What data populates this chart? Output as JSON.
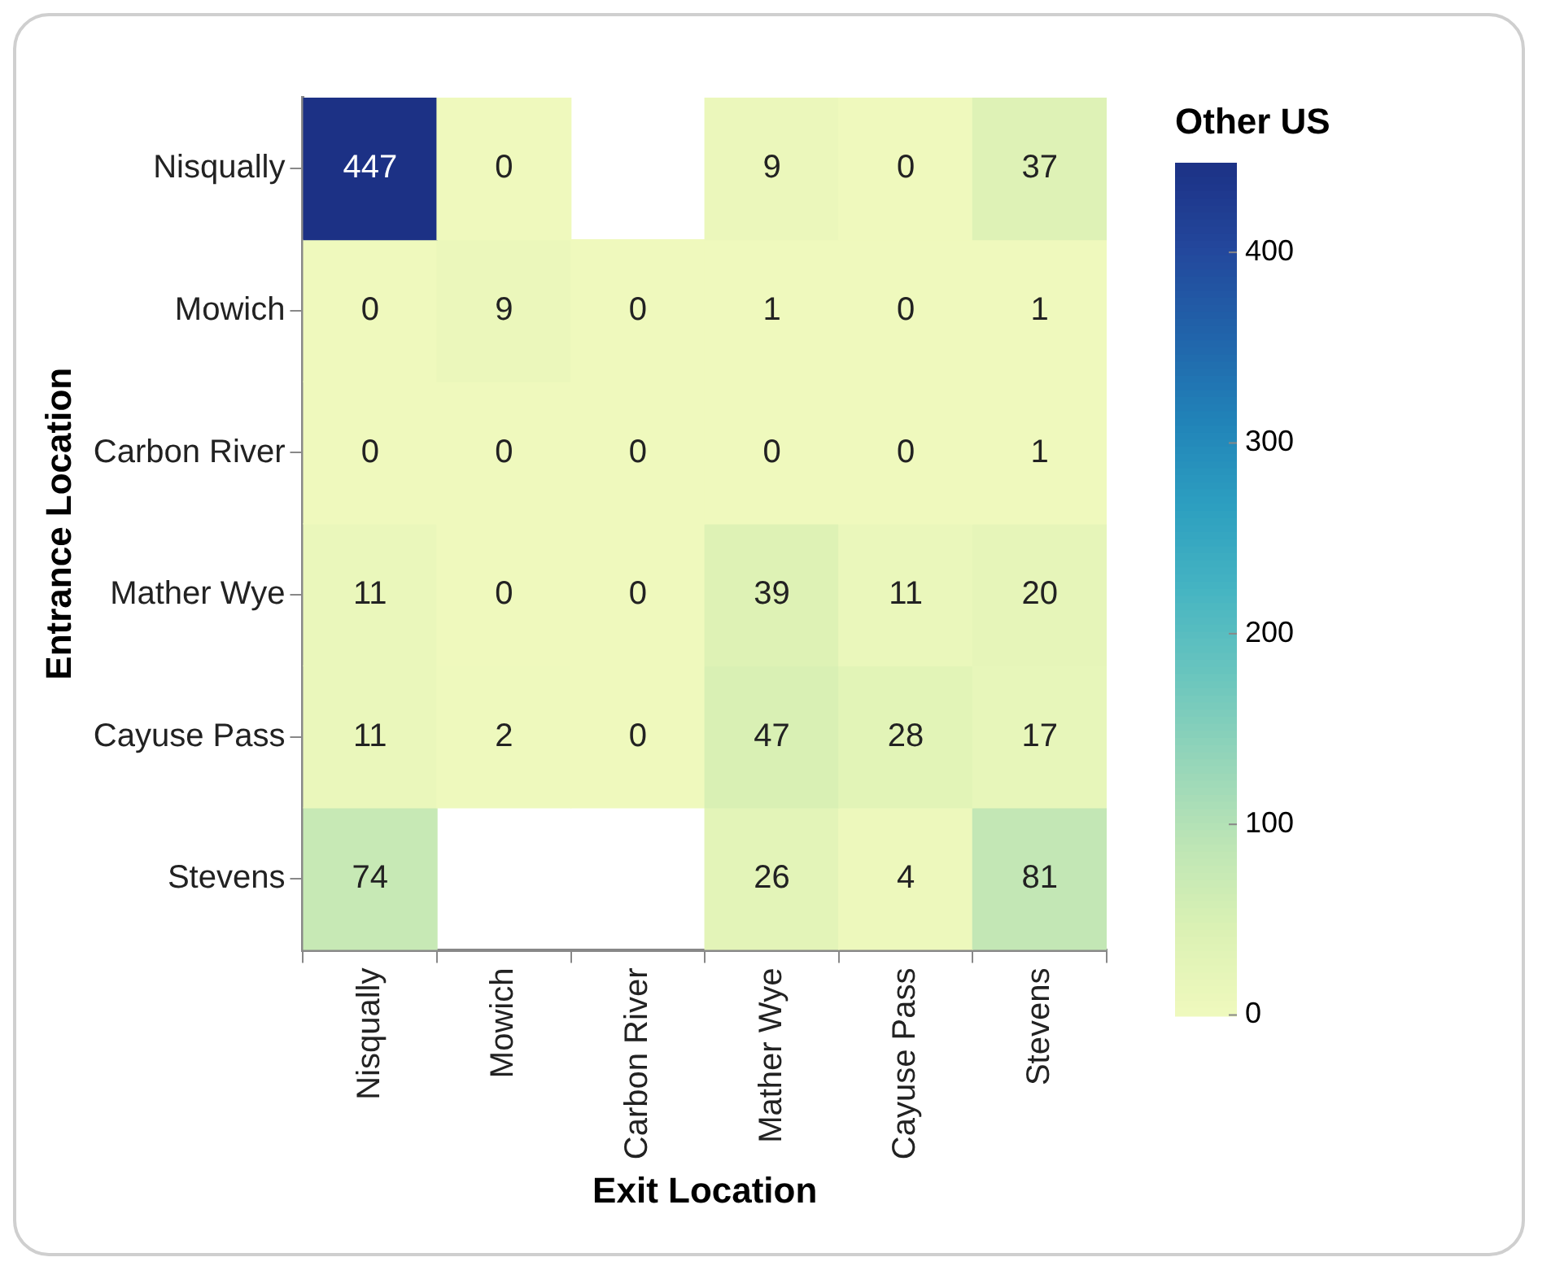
{
  "chart_data": {
    "type": "heatmap",
    "xlabel": "Exit Location",
    "ylabel": "Entrance Location",
    "clabel": "Other US",
    "categories": [
      "Nisqually",
      "Mowich",
      "Carbon River",
      "Mather Wye",
      "Cayuse Pass",
      "Stevens"
    ],
    "y_categories": [
      "Nisqually",
      "Mowich",
      "Carbon River",
      "Mather Wye",
      "Cayuse Pass",
      "Stevens"
    ],
    "cells": [
      [
        447,
        0,
        null,
        9,
        0,
        37
      ],
      [
        0,
        9,
        0,
        1,
        0,
        1
      ],
      [
        0,
        0,
        0,
        0,
        0,
        1
      ],
      [
        11,
        0,
        0,
        39,
        11,
        20
      ],
      [
        11,
        2,
        0,
        47,
        28,
        17
      ],
      [
        74,
        null,
        null,
        26,
        4,
        81
      ]
    ],
    "data_labels": true,
    "clim": [
      0,
      447
    ],
    "cticks": [
      0,
      100,
      200,
      300,
      400
    ]
  }
}
